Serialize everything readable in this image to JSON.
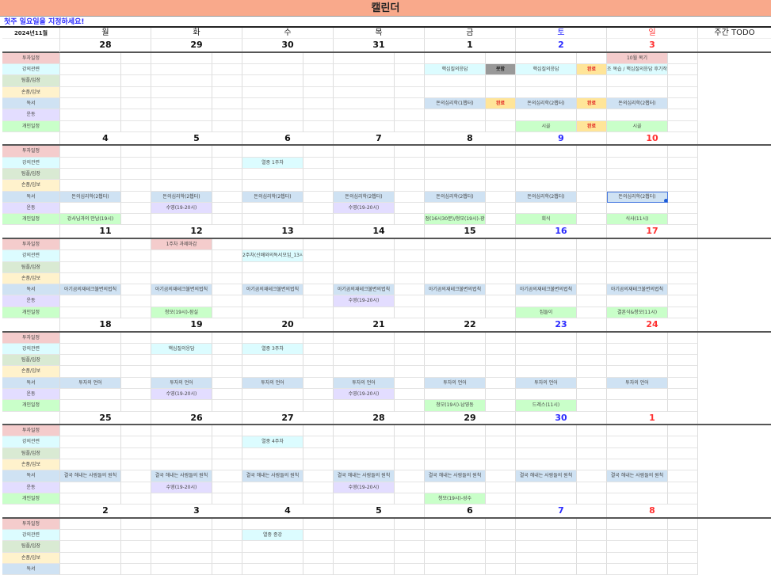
{
  "title": "캘린더",
  "instruction": "첫주 일요일을 지정하세요!",
  "month_label": "2024년11월",
  "weekdays": [
    "월",
    "화",
    "수",
    "목",
    "금",
    "토",
    "일"
  ],
  "todo_header": "주간 TODO",
  "colors": {
    "saturday": "#2a2aff",
    "sunday": "#ff3030",
    "status_done_bg": "#ffe599",
    "status_missed_bg": "#999999",
    "selection": "#4a7ae0"
  },
  "categories": [
    {
      "label": "투자일정",
      "color": "#f4cccc"
    },
    {
      "label": "강의관련",
      "color": "#dcfcff"
    },
    {
      "label": "팀플/임장",
      "color": "#d9ead3"
    },
    {
      "label": "손품/임보",
      "color": "#fff2cc"
    },
    {
      "label": "독서",
      "color": "#cfe2f3"
    },
    {
      "label": "운동",
      "color": "#e3ddff"
    },
    {
      "label": "개인일정",
      "color": "#c9ffc9"
    }
  ],
  "weeks": [
    {
      "dates": [
        "28",
        "29",
        "30",
        "31",
        "1",
        "2",
        "3"
      ],
      "events": [
        {
          "row": 0,
          "day": 6,
          "text": "10월 복기"
        },
        {
          "row": 1,
          "day": 4,
          "text": "핵심질의응답",
          "status": "못함",
          "status_type": "missed"
        },
        {
          "row": 1,
          "day": 5,
          "text": "핵심질의응답",
          "status": "완료",
          "status_type": "done"
        },
        {
          "row": 1,
          "day": 6,
          "text": "조 복습 / 핵심질의응답 후기작"
        },
        {
          "row": 4,
          "day": 4,
          "text": "돈의심리학(1챕터)",
          "status": "완료",
          "status_type": "done"
        },
        {
          "row": 4,
          "day": 5,
          "text": "돈의심리학(2챕터)",
          "status": "완료",
          "status_type": "done"
        },
        {
          "row": 4,
          "day": 6,
          "text": "돈의심리학(2챕터)"
        },
        {
          "row": 6,
          "day": 5,
          "text": "시골",
          "status": "완료",
          "status_type": "done"
        },
        {
          "row": 6,
          "day": 6,
          "text": "시골"
        }
      ]
    },
    {
      "dates": [
        "4",
        "5",
        "6",
        "7",
        "8",
        "9",
        "10"
      ],
      "events": [
        {
          "row": 1,
          "day": 2,
          "text": "열중 1주차"
        },
        {
          "row": 4,
          "day": 0,
          "text": "돈의심리학(2챕터)"
        },
        {
          "row": 4,
          "day": 1,
          "text": "돈의심리학(2챕터)"
        },
        {
          "row": 4,
          "day": 2,
          "text": "돈의심리학(2챕터)"
        },
        {
          "row": 4,
          "day": 3,
          "text": "돈의심리학(2챕터)"
        },
        {
          "row": 4,
          "day": 4,
          "text": "돈의심리학(2챕터)"
        },
        {
          "row": 4,
          "day": 5,
          "text": "돈의심리학(2챕터)"
        },
        {
          "row": 4,
          "day": 6,
          "text": "돈의심리학(2챕터)",
          "selected": true
        },
        {
          "row": 5,
          "day": 1,
          "text": "수영(19-20시)"
        },
        {
          "row": 5,
          "day": 3,
          "text": "수영(19-20시)"
        },
        {
          "row": 6,
          "day": 0,
          "text": "강사님과의 만남(19시)"
        },
        {
          "row": 6,
          "day": 4,
          "text": "점(16시30분)/청모(19시)-광"
        },
        {
          "row": 6,
          "day": 5,
          "text": "회식"
        },
        {
          "row": 6,
          "day": 6,
          "text": "식사(11시)"
        }
      ]
    },
    {
      "dates": [
        "11",
        "12",
        "13",
        "14",
        "15",
        "16",
        "17"
      ],
      "events": [
        {
          "row": 0,
          "day": 1,
          "text": "1주차 과제마감"
        },
        {
          "row": 1,
          "day": 2,
          "text": "2주차(신배와의독서모임_13시"
        },
        {
          "row": 4,
          "day": 0,
          "text": "아기곰의재테크불변의법칙"
        },
        {
          "row": 4,
          "day": 1,
          "text": "아기곰의재테크불변의법칙"
        },
        {
          "row": 4,
          "day": 2,
          "text": "아기곰의재테크불변의법칙"
        },
        {
          "row": 4,
          "day": 3,
          "text": "아기곰의재테크불변의법칙"
        },
        {
          "row": 4,
          "day": 4,
          "text": "아기곰의재테크불변의법칙"
        },
        {
          "row": 4,
          "day": 5,
          "text": "아기곰의재테크불변의법칙"
        },
        {
          "row": 4,
          "day": 6,
          "text": "아기곰의재테크불변의법칙"
        },
        {
          "row": 5,
          "day": 3,
          "text": "수영(19-20시)"
        },
        {
          "row": 6,
          "day": 1,
          "text": "청모(19시)-잠실"
        },
        {
          "row": 6,
          "day": 5,
          "text": "집들이"
        },
        {
          "row": 6,
          "day": 6,
          "text": "결혼식&청모(11시)"
        }
      ]
    },
    {
      "dates": [
        "18",
        "19",
        "20",
        "21",
        "22",
        "23",
        "24"
      ],
      "events": [
        {
          "row": 1,
          "day": 1,
          "text": "핵심질의응답"
        },
        {
          "row": 1,
          "day": 2,
          "text": "열중 3주차"
        },
        {
          "row": 4,
          "day": 0,
          "text": "투자의 언어"
        },
        {
          "row": 4,
          "day": 1,
          "text": "투자의 언어"
        },
        {
          "row": 4,
          "day": 2,
          "text": "투자의 언어"
        },
        {
          "row": 4,
          "day": 3,
          "text": "투자의 언어"
        },
        {
          "row": 4,
          "day": 4,
          "text": "투자의 언어"
        },
        {
          "row": 4,
          "day": 5,
          "text": "투자의 언어"
        },
        {
          "row": 4,
          "day": 6,
          "text": "투자의 언어"
        },
        {
          "row": 5,
          "day": 1,
          "text": "수영(19-20시)"
        },
        {
          "row": 5,
          "day": 3,
          "text": "수영(19-20시)"
        },
        {
          "row": 6,
          "day": 4,
          "text": "청모(19시)-남영동"
        },
        {
          "row": 6,
          "day": 5,
          "text": "드레스(11시)"
        }
      ]
    },
    {
      "dates": [
        "25",
        "26",
        "27",
        "28",
        "29",
        "30",
        "1"
      ],
      "events": [
        {
          "row": 1,
          "day": 2,
          "text": "열중 4주차"
        },
        {
          "row": 4,
          "day": 0,
          "text": "결국 해내는 사람들의 원칙"
        },
        {
          "row": 4,
          "day": 1,
          "text": "결국 해내는 사람들의 원칙"
        },
        {
          "row": 4,
          "day": 2,
          "text": "결국 해내는 사람들의 원칙"
        },
        {
          "row": 4,
          "day": 3,
          "text": "결국 해내는 사람들의 원칙"
        },
        {
          "row": 4,
          "day": 4,
          "text": "결국 해내는 사람들의 원칙"
        },
        {
          "row": 4,
          "day": 5,
          "text": "결국 해내는 사람들의 원칙"
        },
        {
          "row": 4,
          "day": 6,
          "text": "결국 해내는 사람들의 원칙"
        },
        {
          "row": 5,
          "day": 1,
          "text": "수영(19-20시)"
        },
        {
          "row": 5,
          "day": 3,
          "text": "수영(19-20시)"
        },
        {
          "row": 6,
          "day": 4,
          "text": "청모(19시)-성수"
        }
      ]
    },
    {
      "dates": [
        "2",
        "3",
        "4",
        "5",
        "6",
        "7",
        "8"
      ],
      "events": [
        {
          "row": 1,
          "day": 2,
          "text": "열중 종강"
        }
      ]
    }
  ]
}
